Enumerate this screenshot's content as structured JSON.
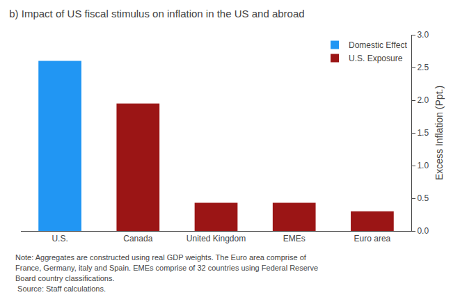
{
  "chart_data": {
    "type": "bar",
    "title": "b) Impact of US fiscal stimulus on inflation in the US and abroad",
    "y_label": "Excess Inflation (Ppt.)",
    "categories": [
      "U.S.",
      "Canada",
      "United Kingdom",
      "EMEs",
      "Euro area"
    ],
    "series": [
      {
        "name": "Domestic Effect",
        "color": "#2196f3",
        "values": [
          2.6,
          null,
          null,
          null,
          null
        ]
      },
      {
        "name": "U.S. Exposure",
        "color": "#9b1515",
        "values": [
          null,
          1.95,
          0.43,
          0.43,
          0.3
        ]
      }
    ],
    "ylim": [
      0,
      3.0
    ],
    "yticks": [
      {
        "value": 0.0,
        "label": "0.0"
      },
      0.5,
      {
        "value": 1.0,
        "label": "1.0"
      },
      1.5,
      {
        "value": 2.0,
        "label": "2.0"
      },
      2.5,
      {
        "value": 3.0,
        "label": "3.0"
      }
    ],
    "grid": false,
    "legend": "upper right",
    "annotations": [
      "Note: Aggregates are constructed using real GDP weights. The Euro area comprise of",
      "France, Germany, italy and Spain. EMEs comprise of 32 countries using Federal Reserve",
      "Board country classifications.",
      " Source: Staff calculations."
    ]
  }
}
